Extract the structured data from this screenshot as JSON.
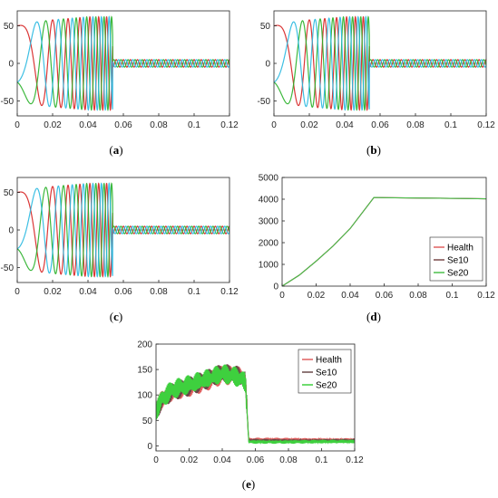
{
  "chart_data": [
    {
      "panel": "(a)",
      "type": "line",
      "title": "",
      "xlabel": "",
      "ylabel": "",
      "xlim": [
        0,
        0.12
      ],
      "ylim": [
        -70,
        70
      ],
      "xticks": [
        "0",
        "0.02",
        "0.04",
        "0.06",
        "0.08",
        "0.1",
        "0.12"
      ],
      "yticks": [
        "50",
        "0",
        "-50"
      ],
      "ytick_values": [
        50,
        0,
        -50
      ],
      "phase_colors": [
        "#d62020",
        "#28b028",
        "#28b8e0"
      ],
      "series": [
        {
          "x": [
            0,
            0.01,
            0.02,
            0.03,
            0.04,
            0.054
          ],
          "amplitude": [
            50,
            55,
            58,
            60,
            62,
            62
          ]
        },
        {
          "x": [
            0.054,
            0.08,
            0.1,
            0.12
          ],
          "amplitude": [
            5,
            5,
            5,
            5
          ]
        }
      ]
    },
    {
      "panel": "(b)",
      "type": "line",
      "title": "",
      "xlabel": "",
      "ylabel": "",
      "xlim": [
        0,
        0.12
      ],
      "ylim": [
        -70,
        70
      ],
      "xticks": [
        "0",
        "0.02",
        "0.04",
        "0.06",
        "0.08",
        "0.1",
        "0.12"
      ],
      "yticks": [
        "50",
        "0",
        "-50"
      ],
      "ytick_values": [
        50,
        0,
        -50
      ],
      "phase_colors": [
        "#d62020",
        "#28b028",
        "#28b8e0"
      ],
      "series": [
        {
          "x": [
            0,
            0.01,
            0.02,
            0.03,
            0.04,
            0.054
          ],
          "amplitude": [
            50,
            55,
            58,
            60,
            62,
            62
          ]
        },
        {
          "x": [
            0.054,
            0.08,
            0.1,
            0.12
          ],
          "amplitude": [
            5,
            5,
            5,
            5
          ]
        }
      ]
    },
    {
      "panel": "(c)",
      "type": "line",
      "title": "",
      "xlabel": "",
      "ylabel": "",
      "xlim": [
        0,
        0.12
      ],
      "ylim": [
        -70,
        70
      ],
      "xticks": [
        "0",
        "0.02",
        "0.04",
        "0.06",
        "0.08",
        "0.1",
        "0.12"
      ],
      "yticks": [
        "50",
        "0",
        "-50"
      ],
      "ytick_values": [
        50,
        0,
        -50
      ],
      "phase_colors": [
        "#d62020",
        "#28b028",
        "#28b8e0"
      ],
      "series": [
        {
          "x": [
            0,
            0.01,
            0.02,
            0.03,
            0.04,
            0.054
          ],
          "amplitude": [
            50,
            55,
            58,
            60,
            62,
            62
          ]
        },
        {
          "x": [
            0.054,
            0.08,
            0.1,
            0.12
          ],
          "amplitude": [
            5,
            5,
            5,
            5
          ]
        }
      ]
    },
    {
      "panel": "(d)",
      "type": "line",
      "title": "",
      "xlabel": "",
      "ylabel": "",
      "xlim": [
        0,
        0.12
      ],
      "ylim": [
        0,
        5000
      ],
      "xticks": [
        "0",
        "0.02",
        "0.04",
        "0.06",
        "0.08",
        "0.1",
        "0.12"
      ],
      "yticks": [
        "5000",
        "4000",
        "3000",
        "2000",
        "1000",
        "0"
      ],
      "ytick_values": [
        5000,
        4000,
        3000,
        2000,
        1000,
        0
      ],
      "legend": {
        "position": "bottom-right",
        "entries": [
          "Health",
          "Se10",
          "Se20"
        ]
      },
      "series": [
        {
          "name": "Health",
          "color": "#e06060",
          "x": [
            0,
            0.01,
            0.02,
            0.03,
            0.04,
            0.054,
            0.06,
            0.12
          ],
          "y": [
            0,
            500,
            1150,
            1850,
            2650,
            4080,
            4070,
            4020
          ]
        },
        {
          "name": "Se10",
          "color": "#7a4a4a",
          "x": [
            0,
            0.01,
            0.02,
            0.03,
            0.04,
            0.054,
            0.06,
            0.12
          ],
          "y": [
            0,
            500,
            1150,
            1850,
            2650,
            4080,
            4070,
            4020
          ]
        },
        {
          "name": "Se20",
          "color": "#4cc04c",
          "x": [
            0,
            0.01,
            0.02,
            0.03,
            0.04,
            0.054,
            0.06,
            0.12
          ],
          "y": [
            0,
            500,
            1150,
            1850,
            2650,
            4080,
            4070,
            4020
          ]
        }
      ]
    },
    {
      "panel": "(e)",
      "type": "line",
      "title": "",
      "xlabel": "",
      "ylabel": "",
      "xlim": [
        0,
        0.12
      ],
      "ylim": [
        -10,
        200
      ],
      "xticks": [
        "0",
        "0.02",
        "0.04",
        "0.06",
        "0.08",
        "0.1",
        "0.12"
      ],
      "yticks": [
        "200",
        "150",
        "100",
        "50",
        "0"
      ],
      "ytick_values": [
        200,
        150,
        100,
        50,
        0
      ],
      "legend": {
        "position": "top-right",
        "entries": [
          "Health",
          "Se10",
          "Se20"
        ]
      },
      "series": [
        {
          "name": "Health",
          "color": "#e06060",
          "x": [
            0,
            0.004,
            0.01,
            0.02,
            0.03,
            0.04,
            0.05,
            0.054,
            0.056,
            0.07,
            0.09,
            0.12
          ],
          "y": [
            70,
            95,
            110,
            118,
            128,
            140,
            135,
            125,
            12,
            12,
            12,
            12
          ]
        },
        {
          "name": "Se10",
          "color": "#6a4a4a",
          "x": [
            0,
            0.004,
            0.01,
            0.02,
            0.03,
            0.04,
            0.05,
            0.054,
            0.056,
            0.07,
            0.09,
            0.12
          ],
          "y": [
            70,
            95,
            110,
            118,
            128,
            140,
            135,
            125,
            10,
            10,
            10,
            10
          ]
        },
        {
          "name": "Se20",
          "color": "#3ed03e",
          "x": [
            0,
            0.004,
            0.01,
            0.02,
            0.03,
            0.04,
            0.05,
            0.054,
            0.056,
            0.07,
            0.09,
            0.12
          ],
          "y": [
            70,
            95,
            110,
            118,
            128,
            140,
            135,
            125,
            8,
            8,
            8,
            8
          ]
        }
      ]
    }
  ]
}
